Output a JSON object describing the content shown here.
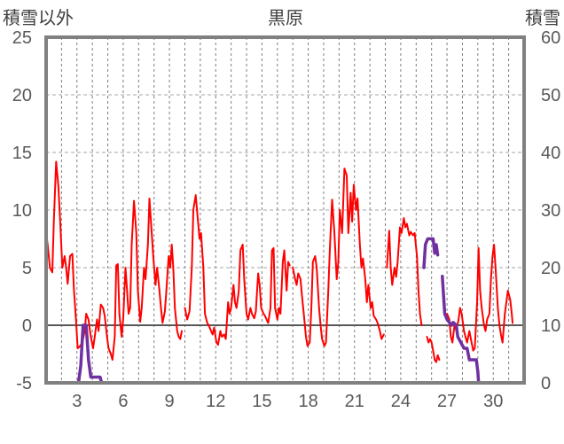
{
  "chart_data": {
    "type": "line",
    "title": "黒原",
    "left_axis_label": "積雪以外",
    "right_axis_label": "積雪",
    "left_ylim": [
      -5,
      25
    ],
    "left_yticks": [
      "25",
      "20",
      "15",
      "10",
      "5",
      "0",
      "-5"
    ],
    "right_ylim": [
      0,
      60
    ],
    "right_yticks": [
      "60",
      "50",
      "40",
      "30",
      "20",
      "10",
      "0"
    ],
    "xlim": [
      1,
      32
    ],
    "xticks": [
      "3",
      "6",
      "9",
      "12",
      "15",
      "18",
      "21",
      "24",
      "27",
      "30"
    ],
    "grid": true,
    "colors": {
      "temperature": "#ff0000",
      "snow": "#7030a0",
      "zero_line": "#595959",
      "frame": "#808080"
    },
    "series": [
      {
        "axis": "left",
        "color": "#ff0000",
        "segments": [
          [
            [
              1.0,
              8
            ],
            [
              1.1,
              7
            ],
            [
              1.25,
              5
            ],
            [
              1.4,
              4.6
            ],
            [
              1.5,
              9
            ],
            [
              1.65,
              14.2
            ],
            [
              1.8,
              12
            ],
            [
              1.95,
              8
            ],
            [
              2.05,
              5
            ],
            [
              2.2,
              6
            ],
            [
              2.3,
              5
            ],
            [
              2.4,
              3.6
            ],
            [
              2.55,
              6
            ],
            [
              2.7,
              6.2
            ],
            [
              2.8,
              3.2
            ],
            [
              2.95,
              0.2
            ],
            [
              3.05,
              -2
            ],
            [
              3.2,
              -1.8
            ],
            [
              3.35,
              -1.5
            ],
            [
              3.5,
              -0.5
            ],
            [
              3.6,
              1
            ],
            [
              3.75,
              0.5
            ],
            [
              3.9,
              -1
            ],
            [
              4.05,
              -2
            ],
            [
              4.15,
              -1
            ],
            [
              4.3,
              0.5
            ],
            [
              4.4,
              -0.5
            ],
            [
              4.55,
              1.8
            ],
            [
              4.7,
              1.5
            ],
            [
              4.8,
              0.8
            ],
            [
              4.95,
              -1
            ],
            [
              5.05,
              -2
            ],
            [
              5.2,
              -2.5
            ],
            [
              5.3,
              -3
            ],
            [
              5.45,
              -1
            ],
            [
              5.55,
              5.2
            ],
            [
              5.65,
              5.3
            ],
            [
              5.75,
              1
            ],
            [
              5.9,
              -1
            ],
            [
              6.0,
              0.5
            ],
            [
              6.15,
              5
            ],
            [
              6.25,
              3
            ],
            [
              6.35,
              1
            ],
            [
              6.45,
              1.5
            ],
            [
              6.55,
              7
            ],
            [
              6.7,
              10.8
            ],
            [
              6.85,
              8
            ],
            [
              6.95,
              3
            ],
            [
              7.1,
              0.3
            ],
            [
              7.2,
              1.5
            ],
            [
              7.35,
              5
            ],
            [
              7.45,
              4
            ],
            [
              7.6,
              7
            ],
            [
              7.7,
              11
            ],
            [
              7.85,
              8
            ],
            [
              7.95,
              6
            ],
            [
              8.1,
              3.5
            ],
            [
              8.2,
              5
            ],
            [
              8.35,
              3
            ],
            [
              8.45,
              1.5
            ],
            [
              8.55,
              0.2
            ],
            [
              8.7,
              1.2
            ],
            [
              8.8,
              3
            ],
            [
              8.95,
              6
            ],
            [
              9.05,
              5
            ],
            [
              9.15,
              7
            ],
            [
              9.25,
              5
            ],
            [
              9.35,
              1.5
            ],
            [
              9.5,
              -0.5
            ],
            [
              9.6,
              -1
            ],
            [
              9.7,
              -1.2
            ],
            [
              9.8,
              -0.5
            ]
          ],
          [
            [
              10.0,
              1.5
            ],
            [
              10.15,
              0.5
            ],
            [
              10.3,
              1.2
            ],
            [
              10.45,
              5
            ],
            [
              10.55,
              10
            ],
            [
              10.7,
              11.3
            ],
            [
              10.85,
              9
            ],
            [
              10.95,
              7.5
            ],
            [
              11.05,
              8
            ],
            [
              11.2,
              5
            ],
            [
              11.3,
              1
            ],
            [
              11.45,
              0.2
            ],
            [
              11.55,
              0
            ],
            [
              11.7,
              -0.5
            ],
            [
              11.8,
              -0.8
            ],
            [
              11.9,
              -0.2
            ],
            [
              12.05,
              -1.5
            ],
            [
              12.15,
              -1.7
            ],
            [
              12.3,
              -0.5
            ],
            [
              12.4,
              -1
            ],
            [
              12.55,
              -0.8
            ],
            [
              12.65,
              -1.2
            ],
            [
              12.8,
              2
            ],
            [
              12.9,
              1
            ],
            [
              13.0,
              1.5
            ],
            [
              13.15,
              3.5
            ],
            [
              13.25,
              2
            ],
            [
              13.35,
              1.5
            ],
            [
              13.5,
              3
            ],
            [
              13.6,
              6.5
            ],
            [
              13.75,
              7
            ],
            [
              13.85,
              4
            ],
            [
              14.0,
              1
            ],
            [
              14.1,
              0.5
            ],
            [
              14.25,
              1.5
            ],
            [
              14.35,
              1
            ],
            [
              14.5,
              0.6
            ],
            [
              14.6,
              1.2
            ],
            [
              14.75,
              4.5
            ],
            [
              14.85,
              3.5
            ],
            [
              14.95,
              1.5
            ],
            [
              15.1,
              1
            ],
            [
              15.2,
              0.8
            ],
            [
              15.3,
              0.5
            ],
            [
              15.4,
              0.2
            ],
            [
              15.55,
              1.5
            ],
            [
              15.65,
              6.5
            ],
            [
              15.75,
              6.7
            ],
            [
              15.85,
              1.5
            ],
            [
              16.0,
              0.5
            ],
            [
              16.1,
              1.5
            ],
            [
              16.2,
              1
            ],
            [
              16.35,
              5.5
            ],
            [
              16.45,
              6.5
            ],
            [
              16.6,
              3
            ],
            [
              16.7,
              5.5
            ],
            [
              16.8,
              5.2
            ]
          ],
          [
            [
              17.0,
              5
            ],
            [
              17.15,
              4
            ],
            [
              17.25,
              3.5
            ],
            [
              17.35,
              4.5
            ],
            [
              17.5,
              4
            ],
            [
              17.6,
              2.5
            ],
            [
              17.75,
              0.5
            ],
            [
              17.85,
              -1
            ],
            [
              17.95,
              -1.8
            ],
            [
              18.1,
              -1.5
            ],
            [
              18.2,
              1.5
            ],
            [
              18.3,
              5.5
            ],
            [
              18.45,
              6
            ],
            [
              18.55,
              5
            ],
            [
              18.7,
              1.5
            ],
            [
              18.8,
              0
            ],
            [
              18.9,
              -1.2
            ],
            [
              19.05,
              -1.8
            ],
            [
              19.15,
              -1.5
            ],
            [
              19.3,
              3
            ],
            [
              19.4,
              6.5
            ],
            [
              19.55,
              10.9
            ],
            [
              19.7,
              8
            ],
            [
              19.85,
              4
            ],
            [
              19.95,
              5.5
            ],
            [
              20.05,
              10
            ],
            [
              20.2,
              8
            ],
            [
              20.35,
              13.6
            ],
            [
              20.5,
              13
            ],
            [
              20.6,
              8
            ],
            [
              20.75,
              11.5
            ],
            [
              20.85,
              9
            ],
            [
              20.95,
              12.2
            ],
            [
              21.1,
              10
            ],
            [
              21.2,
              11
            ],
            [
              21.35,
              7
            ],
            [
              21.45,
              5
            ],
            [
              21.55,
              5.8
            ],
            [
              21.7,
              4
            ],
            [
              21.8,
              2
            ],
            [
              21.9,
              3.5
            ],
            [
              22.05,
              1.5
            ],
            [
              22.15,
              2
            ],
            [
              22.25,
              0.8
            ],
            [
              22.4,
              0.5
            ],
            [
              22.5,
              0.2
            ],
            [
              22.65,
              -0.5
            ],
            [
              22.75,
              -1.2
            ],
            [
              22.9,
              -0.8
            ]
          ],
          [
            [
              23.1,
              5
            ],
            [
              23.25,
              8.2
            ],
            [
              23.35,
              5
            ],
            [
              23.45,
              3.5
            ],
            [
              23.6,
              5
            ],
            [
              23.7,
              4.2
            ],
            [
              23.8,
              5.5
            ],
            [
              23.95,
              8.5
            ],
            [
              24.05,
              8
            ],
            [
              24.2,
              9.3
            ],
            [
              24.3,
              8.5
            ],
            [
              24.4,
              8.8
            ],
            [
              24.55,
              7.8
            ],
            [
              24.65,
              8.1
            ],
            [
              24.8,
              7.8
            ],
            [
              24.9,
              8
            ],
            [
              25.05,
              6
            ],
            [
              25.15,
              3
            ],
            [
              25.25,
              1
            ],
            [
              25.35,
              0
            ]
          ],
          [
            [
              25.7,
              -1
            ],
            [
              25.8,
              -1.5
            ],
            [
              25.9,
              -1.2
            ],
            [
              26.0,
              -1.5
            ],
            [
              26.1,
              -2.2
            ],
            [
              26.2,
              -3
            ],
            [
              26.3,
              -3.2
            ],
            [
              26.4,
              -2.6
            ],
            [
              26.5,
              -3
            ]
          ],
          [
            [
              27.0,
              1
            ],
            [
              27.15,
              0.5
            ],
            [
              27.25,
              -1
            ],
            [
              27.35,
              -1.5
            ],
            [
              27.5,
              0.2
            ],
            [
              27.6,
              -0.5
            ],
            [
              27.75,
              0.5
            ],
            [
              27.85,
              1.5
            ],
            [
              27.95,
              1
            ],
            [
              28.1,
              -0.5
            ],
            [
              28.2,
              -1
            ],
            [
              28.3,
              -1.5
            ],
            [
              28.45,
              -0.5
            ],
            [
              28.55,
              -1.2
            ],
            [
              28.7,
              -2.2
            ],
            [
              28.8,
              -2
            ],
            [
              28.95,
              2
            ],
            [
              29.05,
              6.7
            ],
            [
              29.15,
              3
            ],
            [
              29.25,
              1.5
            ],
            [
              29.4,
              0
            ],
            [
              29.5,
              -0.5
            ],
            [
              29.6,
              0.5
            ],
            [
              29.75,
              1
            ],
            [
              29.85,
              4
            ],
            [
              29.95,
              6
            ],
            [
              30.05,
              7
            ],
            [
              30.15,
              5
            ],
            [
              30.3,
              1.5
            ],
            [
              30.4,
              0
            ],
            [
              30.5,
              -0.8
            ],
            [
              30.6,
              -1.5
            ],
            [
              30.75,
              1
            ],
            [
              30.85,
              2
            ],
            [
              30.95,
              3
            ],
            [
              31.1,
              2.2
            ],
            [
              31.2,
              1
            ],
            [
              31.25,
              0.2
            ]
          ]
        ]
      },
      {
        "axis": "right",
        "color": "#7030a0",
        "segments": [
          [
            [
              1.0,
              0
            ],
            [
              3.1,
              0
            ],
            [
              3.25,
              3
            ],
            [
              3.4,
              10
            ],
            [
              3.6,
              10
            ],
            [
              3.75,
              4
            ],
            [
              3.9,
              1
            ],
            [
              4.5,
              1
            ],
            [
              4.6,
              0
            ],
            [
              9.9,
              0
            ]
          ],
          [
            [
              10.05,
              0
            ],
            [
              31.2,
              0
            ]
          ],
          [
            [
              25.5,
              20
            ],
            [
              25.6,
              24
            ],
            [
              25.75,
              25
            ],
            [
              26.1,
              25
            ],
            [
              26.2,
              22.5
            ],
            [
              26.3,
              24
            ],
            [
              26.4,
              22.2
            ]
          ],
          [
            [
              26.7,
              18.5
            ],
            [
              26.85,
              12
            ],
            [
              27.0,
              11
            ],
            [
              27.3,
              10
            ],
            [
              27.4,
              10.5
            ],
            [
              27.6,
              10
            ],
            [
              27.7,
              8
            ],
            [
              28.1,
              6
            ],
            [
              28.3,
              6
            ],
            [
              28.45,
              4
            ],
            [
              28.6,
              4
            ],
            [
              28.9,
              4
            ],
            [
              29.0,
              2
            ],
            [
              29.05,
              0
            ]
          ]
        ]
      }
    ]
  }
}
